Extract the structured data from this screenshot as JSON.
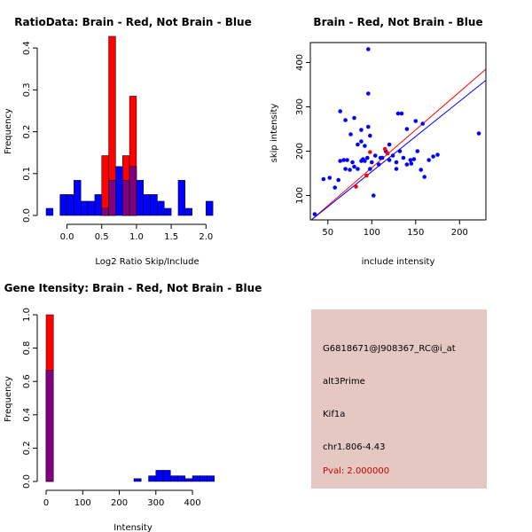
{
  "colors": {
    "red": "#ff0000",
    "blue": "#0000ff",
    "overlap": "#800080",
    "info_bg": "#e6c8c2",
    "pval": "#cc0000"
  },
  "chart_data": [
    {
      "type": "histogram",
      "title": "RatioData: Brain - Red, Not Brain - Blue",
      "xlabel": "Log2 Ratio Skip/Include",
      "ylabel": "Frequency",
      "xlim": [
        -0.3,
        2.2
      ],
      "ylim": [
        0,
        0.43
      ],
      "xticks": [
        0.0,
        0.5,
        1.0,
        1.5,
        2.0
      ],
      "xtick_labels": [
        "0.0",
        "0.5",
        "1.0",
        "1.5",
        "2.0"
      ],
      "yticks": [
        0,
        0.1,
        0.2,
        0.3,
        0.4
      ],
      "ytick_labels": [
        "0.0",
        "0.1",
        "0.2",
        "0.3",
        "0.4"
      ],
      "bin_width": 0.1,
      "series": [
        {
          "name": "Not Brain",
          "color": "blue",
          "bins": [
            {
              "x0": -0.3,
              "y": 0.017
            },
            {
              "x0": -0.1,
              "y": 0.05
            },
            {
              "x0": 0.0,
              "y": 0.05
            },
            {
              "x0": 0.1,
              "y": 0.084
            },
            {
              "x0": 0.2,
              "y": 0.034
            },
            {
              "x0": 0.3,
              "y": 0.034
            },
            {
              "x0": 0.4,
              "y": 0.05
            },
            {
              "x0": 0.5,
              "y": 0.017
            },
            {
              "x0": 0.6,
              "y": 0.084
            },
            {
              "x0": 0.7,
              "y": 0.117
            },
            {
              "x0": 0.8,
              "y": 0.084
            },
            {
              "x0": 0.9,
              "y": 0.117
            },
            {
              "x0": 1.0,
              "y": 0.084
            },
            {
              "x0": 1.1,
              "y": 0.05
            },
            {
              "x0": 1.2,
              "y": 0.05
            },
            {
              "x0": 1.3,
              "y": 0.034
            },
            {
              "x0": 1.4,
              "y": 0.017
            },
            {
              "x0": 1.6,
              "y": 0.084
            },
            {
              "x0": 1.7,
              "y": 0.017
            },
            {
              "x0": 2.0,
              "y": 0.034
            }
          ]
        },
        {
          "name": "Brain",
          "color": "red",
          "bins": [
            {
              "x0": 0.5,
              "y": 0.143
            },
            {
              "x0": 0.6,
              "y": 0.428
            },
            {
              "x0": 0.8,
              "y": 0.143
            },
            {
              "x0": 0.9,
              "y": 0.285
            }
          ]
        }
      ]
    },
    {
      "type": "scatter",
      "title": "Brain - Red, Not Brain - Blue",
      "xlabel": "include intensity",
      "ylabel": "skip intensity",
      "xlim": [
        30,
        230
      ],
      "ylim": [
        45,
        445
      ],
      "xticks": [
        50,
        100,
        150,
        200
      ],
      "xtick_labels": [
        "50",
        "100",
        "150",
        "200"
      ],
      "yticks": [
        100,
        200,
        300,
        400
      ],
      "ytick_labels": [
        "100",
        "200",
        "300",
        "400"
      ],
      "series": [
        {
          "name": "Not Brain",
          "color": "blue",
          "points": [
            [
              35,
              58
            ],
            [
              45,
              137
            ],
            [
              52,
              140
            ],
            [
              58,
              118
            ],
            [
              62,
              135
            ],
            [
              64,
              178
            ],
            [
              68,
              180
            ],
            [
              70,
              160
            ],
            [
              72,
              180
            ],
            [
              75,
              158
            ],
            [
              78,
              175
            ],
            [
              80,
              165
            ],
            [
              84,
              160
            ],
            [
              88,
              178
            ],
            [
              90,
              182
            ],
            [
              92,
              178
            ],
            [
              95,
              185
            ],
            [
              98,
              160
            ],
            [
              100,
              175
            ],
            [
              104,
              190
            ],
            [
              108,
              170
            ],
            [
              112,
              185
            ],
            [
              116,
              200
            ],
            [
              120,
              180
            ],
            [
              124,
              190
            ],
            [
              128,
              160
            ],
            [
              132,
              200
            ],
            [
              136,
              185
            ],
            [
              140,
              170
            ],
            [
              144,
              180
            ],
            [
              148,
              182
            ],
            [
              152,
              200
            ],
            [
              156,
              158
            ],
            [
              160,
              142
            ],
            [
              165,
              180
            ],
            [
              170,
              188
            ],
            [
              175,
              192
            ],
            [
              64,
              290
            ],
            [
              70,
              270
            ],
            [
              80,
              275
            ],
            [
              88,
              222
            ],
            [
              92,
              212
            ],
            [
              96,
              255
            ],
            [
              98,
              235
            ],
            [
              120,
              215
            ],
            [
              130,
              285
            ],
            [
              140,
              250
            ],
            [
              150,
              268
            ],
            [
              96,
              330
            ],
            [
              96,
              430
            ],
            [
              76,
              238
            ],
            [
              88,
              248
            ],
            [
              102,
              100
            ],
            [
              134,
              285
            ],
            [
              158,
              262
            ],
            [
              222,
              240
            ],
            [
              84,
              215
            ],
            [
              110,
              185
            ],
            [
              128,
              175
            ],
            [
              145,
              172
            ]
          ]
        },
        {
          "name": "Brain",
          "color": "red",
          "points": [
            [
              82,
              120
            ],
            [
              94,
              145
            ],
            [
              98,
              198
            ],
            [
              115,
              205
            ],
            [
              118,
              195
            ]
          ]
        }
      ],
      "fit_lines": [
        {
          "name": "Brain fit",
          "color": "red",
          "from": [
            30,
            43
          ],
          "to": [
            230,
            385
          ]
        },
        {
          "name": "Not Brain fit",
          "color": "blue",
          "from": [
            30,
            43
          ],
          "to": [
            230,
            360
          ]
        }
      ]
    },
    {
      "type": "histogram",
      "title": "Gene Itensity: Brain - Red, Not Brain - Blue",
      "xlabel": "Intensity",
      "ylabel": "Frequency",
      "xlim": [
        0,
        475
      ],
      "ylim": [
        0,
        1.0
      ],
      "xticks": [
        0,
        100,
        200,
        300,
        400
      ],
      "xtick_labels": [
        "0",
        "100",
        "200",
        "300",
        "400"
      ],
      "yticks": [
        0,
        0.2,
        0.4,
        0.6,
        0.8,
        1.0
      ],
      "ytick_labels": [
        "0.0",
        "0.2",
        "0.4",
        "0.6",
        "0.8",
        "1.0"
      ],
      "bin_width": 20,
      "series": [
        {
          "name": "Not Brain",
          "color": "blue",
          "bins": [
            {
              "x0": 0,
              "y": 0.667
            },
            {
              "x0": 240,
              "y": 0.017
            },
            {
              "x0": 280,
              "y": 0.034
            },
            {
              "x0": 300,
              "y": 0.067
            },
            {
              "x0": 320,
              "y": 0.067
            },
            {
              "x0": 340,
              "y": 0.034
            },
            {
              "x0": 360,
              "y": 0.034
            },
            {
              "x0": 380,
              "y": 0.017
            },
            {
              "x0": 400,
              "y": 0.034
            },
            {
              "x0": 420,
              "y": 0.034
            },
            {
              "x0": 440,
              "y": 0.034
            }
          ]
        },
        {
          "name": "Brain",
          "color": "red",
          "bins": [
            {
              "x0": 0,
              "y": 1.0
            }
          ]
        }
      ]
    }
  ],
  "info": {
    "probe_id": "G6818671@J908367_RC@i_at",
    "event_type": "alt3Prime",
    "gene": "Kif1a",
    "location": "chr1.806-4.43",
    "pval": "Pval: 2.000000"
  }
}
